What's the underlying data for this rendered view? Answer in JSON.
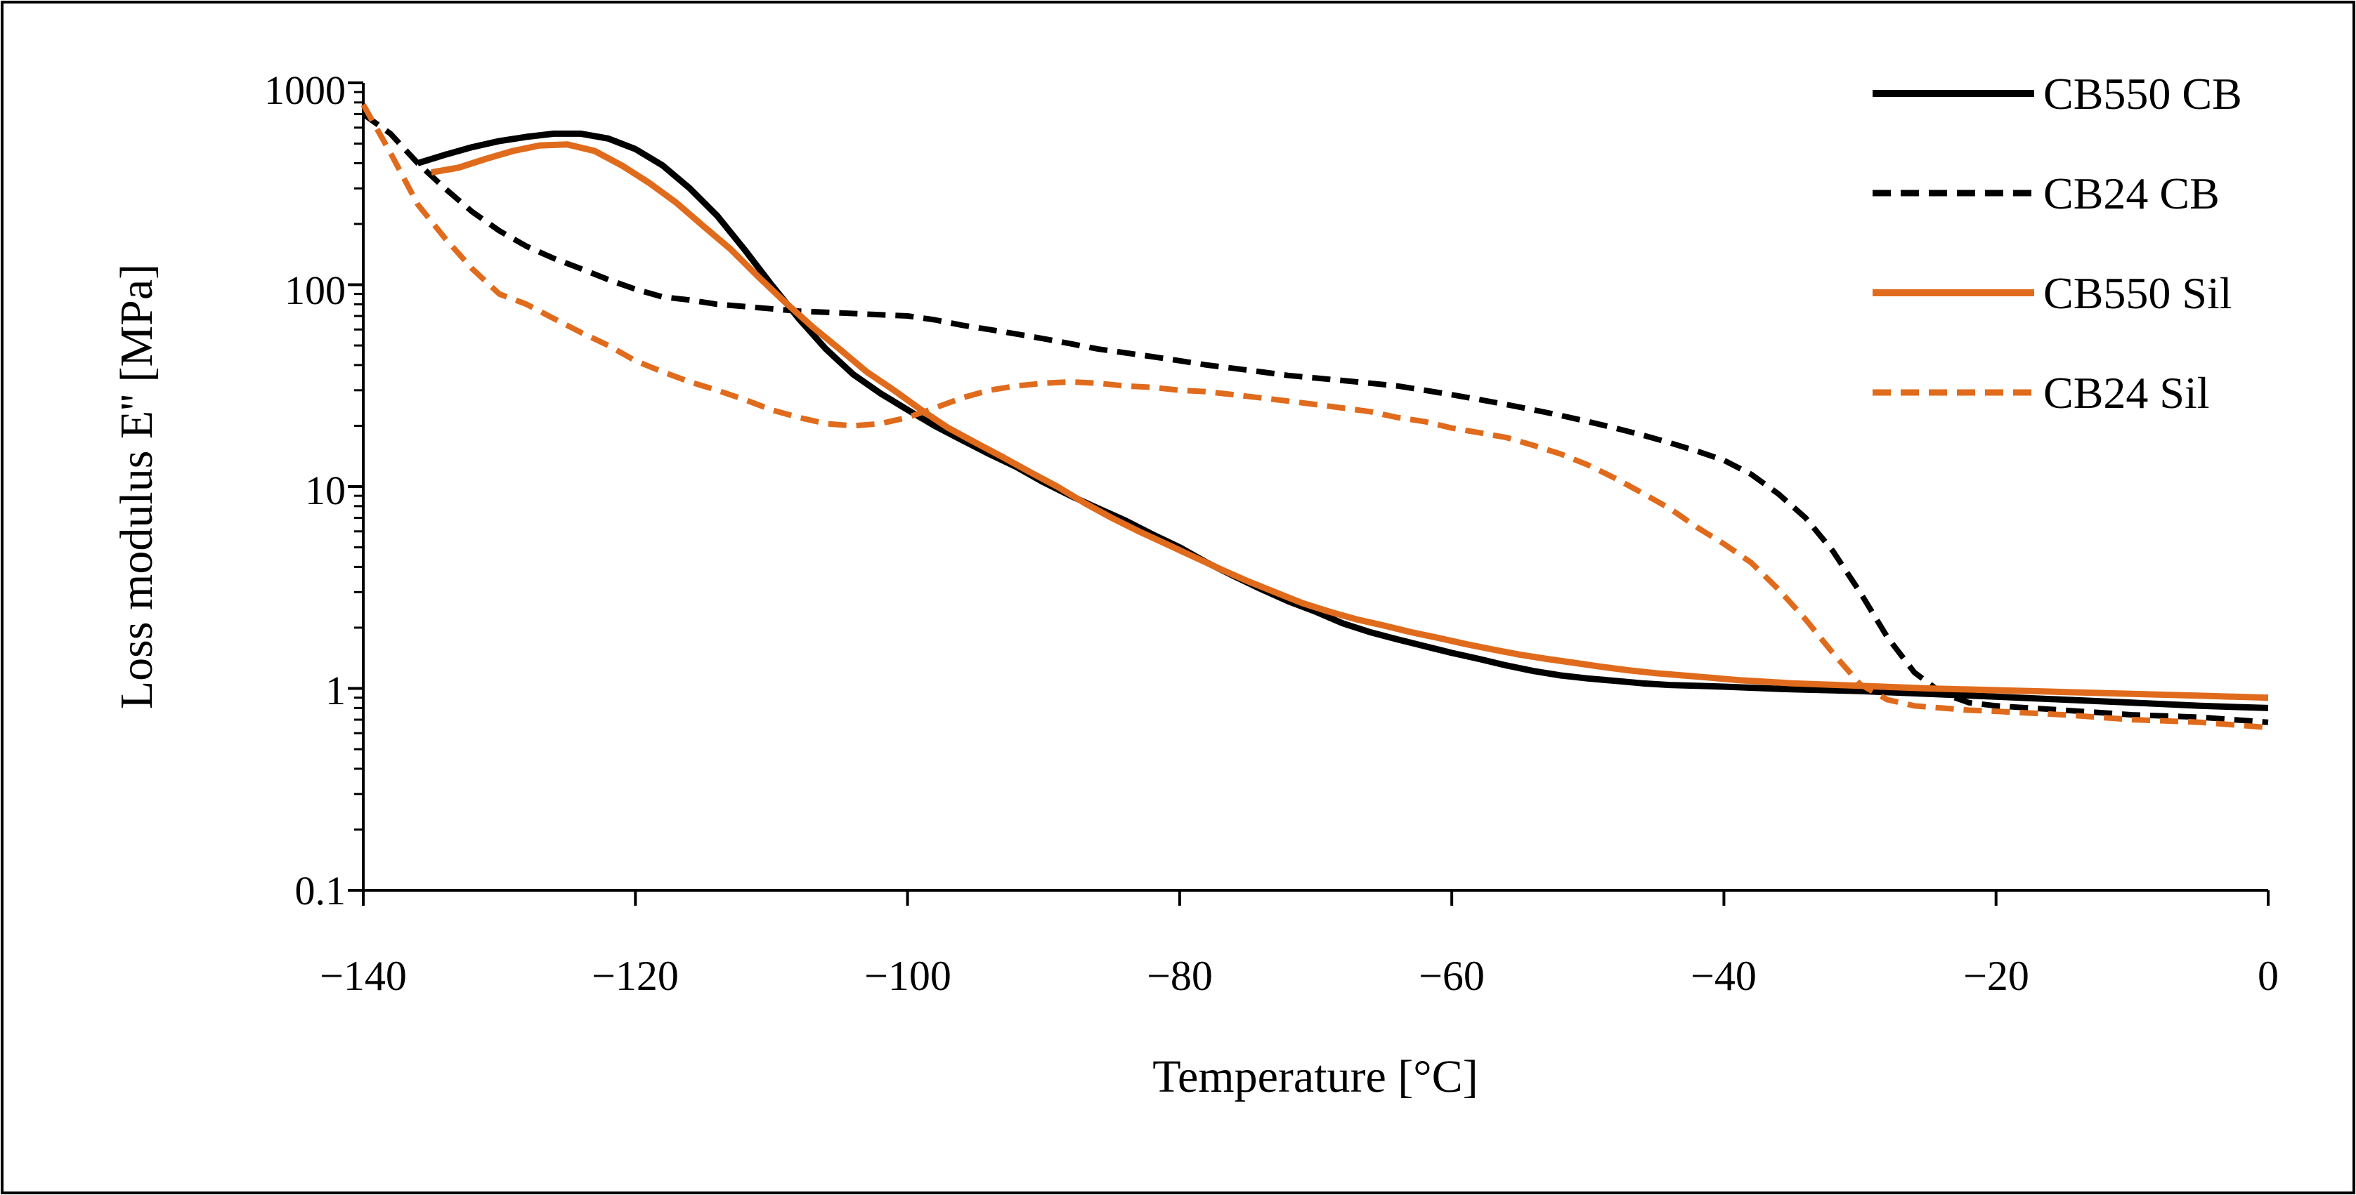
{
  "chart_data": {
    "type": "line",
    "title": "",
    "xlabel": "Temperature [°C]",
    "ylabel": "Loss modulus E'' [MPa]",
    "xlim": [
      -140,
      0
    ],
    "ylim": [
      0.1,
      1000
    ],
    "yscale": "log",
    "x_ticks": [
      -140,
      -120,
      -100,
      -80,
      -60,
      -40,
      -20,
      0
    ],
    "x_tick_labels": [
      "−140",
      "−120",
      "−100",
      "−80",
      "−60",
      "−40",
      "−20",
      "0"
    ],
    "y_ticks": [
      0.1,
      1,
      10,
      100,
      1000
    ],
    "y_tick_labels": [
      "0.1",
      "1",
      "10",
      "100",
      "1000"
    ],
    "grid": false,
    "legend_position": "top-right",
    "series": [
      {
        "name": "CB550 CB",
        "color": "#000000",
        "dash": "solid",
        "points": [
          [
            -136,
            400
          ],
          [
            -134,
            440
          ],
          [
            -132,
            480
          ],
          [
            -130,
            515
          ],
          [
            -128,
            540
          ],
          [
            -126,
            560
          ],
          [
            -124,
            560
          ],
          [
            -122,
            530
          ],
          [
            -120,
            470
          ],
          [
            -118,
            390
          ],
          [
            -116,
            300
          ],
          [
            -114,
            220
          ],
          [
            -112,
            150
          ],
          [
            -110,
            100
          ],
          [
            -108,
            68
          ],
          [
            -106,
            48
          ],
          [
            -104,
            36
          ],
          [
            -102,
            29
          ],
          [
            -100,
            24
          ],
          [
            -98,
            20
          ],
          [
            -96,
            17
          ],
          [
            -94,
            14.5
          ],
          [
            -92,
            12.5
          ],
          [
            -90,
            10.5
          ],
          [
            -88,
            9
          ],
          [
            -86,
            7.8
          ],
          [
            -84,
            6.8
          ],
          [
            -82,
            5.8
          ],
          [
            -80,
            5
          ],
          [
            -78,
            4.2
          ],
          [
            -76,
            3.6
          ],
          [
            -74,
            3.1
          ],
          [
            -72,
            2.7
          ],
          [
            -70,
            2.4
          ],
          [
            -68,
            2.1
          ],
          [
            -66,
            1.9
          ],
          [
            -64,
            1.75
          ],
          [
            -62,
            1.62
          ],
          [
            -60,
            1.5
          ],
          [
            -58,
            1.4
          ],
          [
            -56,
            1.3
          ],
          [
            -54,
            1.22
          ],
          [
            -52,
            1.16
          ],
          [
            -50,
            1.12
          ],
          [
            -48,
            1.09
          ],
          [
            -46,
            1.06
          ],
          [
            -44,
            1.04
          ],
          [
            -42,
            1.03
          ],
          [
            -40,
            1.02
          ],
          [
            -35,
            0.99
          ],
          [
            -30,
            0.97
          ],
          [
            -25,
            0.94
          ],
          [
            -20,
            0.91
          ],
          [
            -15,
            0.88
          ],
          [
            -10,
            0.85
          ],
          [
            -5,
            0.82
          ],
          [
            0,
            0.8
          ]
        ]
      },
      {
        "name": "CB24 CB",
        "color": "#000000",
        "dash": "dashed",
        "points": [
          [
            -140,
            700
          ],
          [
            -138,
            560
          ],
          [
            -136,
            400
          ],
          [
            -134,
            300
          ],
          [
            -132,
            230
          ],
          [
            -130,
            185
          ],
          [
            -128,
            155
          ],
          [
            -126,
            135
          ],
          [
            -124,
            120
          ],
          [
            -122,
            106
          ],
          [
            -120,
            95
          ],
          [
            -118,
            87
          ],
          [
            -116,
            84
          ],
          [
            -114,
            80
          ],
          [
            -112,
            78
          ],
          [
            -110,
            76
          ],
          [
            -108,
            74
          ],
          [
            -106,
            73
          ],
          [
            -104,
            72
          ],
          [
            -102,
            71
          ],
          [
            -100,
            70
          ],
          [
            -98,
            67
          ],
          [
            -96,
            63
          ],
          [
            -94,
            60
          ],
          [
            -92,
            57
          ],
          [
            -90,
            54
          ],
          [
            -88,
            51
          ],
          [
            -86,
            48
          ],
          [
            -84,
            46
          ],
          [
            -82,
            44
          ],
          [
            -80,
            42
          ],
          [
            -78,
            40
          ],
          [
            -76,
            38.5
          ],
          [
            -74,
            37
          ],
          [
            -72,
            35.5
          ],
          [
            -70,
            34.5
          ],
          [
            -68,
            33.5
          ],
          [
            -66,
            32.5
          ],
          [
            -64,
            31.5
          ],
          [
            -62,
            30
          ],
          [
            -60,
            28.5
          ],
          [
            -58,
            27
          ],
          [
            -56,
            25.5
          ],
          [
            -54,
            24
          ],
          [
            -52,
            22.5
          ],
          [
            -50,
            21
          ],
          [
            -48,
            19.5
          ],
          [
            -46,
            18
          ],
          [
            -44,
            16.5
          ],
          [
            -42,
            15
          ],
          [
            -40,
            13.5
          ],
          [
            -38,
            11.5
          ],
          [
            -36,
            9.2
          ],
          [
            -34,
            7
          ],
          [
            -32,
            4.8
          ],
          [
            -30,
            3
          ],
          [
            -28,
            1.8
          ],
          [
            -26,
            1.2
          ],
          [
            -24,
            0.95
          ],
          [
            -22,
            0.85
          ],
          [
            -20,
            0.82
          ],
          [
            -15,
            0.78
          ],
          [
            -10,
            0.74
          ],
          [
            -5,
            0.72
          ],
          [
            0,
            0.68
          ]
        ]
      },
      {
        "name": "CB550 Sil",
        "color": "#E06B1C",
        "dash": "solid",
        "points": [
          [
            -135,
            360
          ],
          [
            -133,
            380
          ],
          [
            -131,
            420
          ],
          [
            -129,
            460
          ],
          [
            -127,
            490
          ],
          [
            -125,
            495
          ],
          [
            -123,
            460
          ],
          [
            -121,
            390
          ],
          [
            -119,
            320
          ],
          [
            -117,
            255
          ],
          [
            -115,
            195
          ],
          [
            -113,
            150
          ],
          [
            -111,
            110
          ],
          [
            -109,
            82
          ],
          [
            -107,
            62
          ],
          [
            -105,
            48
          ],
          [
            -103,
            37
          ],
          [
            -101,
            30
          ],
          [
            -99,
            24
          ],
          [
            -97,
            19.5
          ],
          [
            -95,
            16.5
          ],
          [
            -93,
            14
          ],
          [
            -91,
            11.8
          ],
          [
            -89,
            10
          ],
          [
            -87,
            8.3
          ],
          [
            -85,
            7
          ],
          [
            -83,
            6
          ],
          [
            -81,
            5.2
          ],
          [
            -79,
            4.5
          ],
          [
            -77,
            3.9
          ],
          [
            -75,
            3.4
          ],
          [
            -73,
            3
          ],
          [
            -71,
            2.65
          ],
          [
            -69,
            2.4
          ],
          [
            -67,
            2.2
          ],
          [
            -65,
            2.05
          ],
          [
            -63,
            1.9
          ],
          [
            -61,
            1.78
          ],
          [
            -59,
            1.66
          ],
          [
            -57,
            1.56
          ],
          [
            -55,
            1.47
          ],
          [
            -53,
            1.4
          ],
          [
            -51,
            1.34
          ],
          [
            -49,
            1.28
          ],
          [
            -47,
            1.23
          ],
          [
            -45,
            1.19
          ],
          [
            -43,
            1.16
          ],
          [
            -41,
            1.13
          ],
          [
            -39,
            1.1
          ],
          [
            -35,
            1.06
          ],
          [
            -30,
            1.03
          ],
          [
            -25,
            1
          ],
          [
            -20,
            0.98
          ],
          [
            -15,
            0.96
          ],
          [
            -10,
            0.94
          ],
          [
            -5,
            0.92
          ],
          [
            0,
            0.9
          ]
        ]
      },
      {
        "name": "CB24 Sil",
        "color": "#E06B1C",
        "dash": "dashed",
        "points": [
          [
            -140,
            780
          ],
          [
            -138,
            450
          ],
          [
            -136,
            250
          ],
          [
            -134,
            170
          ],
          [
            -132,
            120
          ],
          [
            -130,
            90
          ],
          [
            -128,
            80
          ],
          [
            -126,
            68
          ],
          [
            -124,
            58
          ],
          [
            -122,
            50
          ],
          [
            -120,
            42
          ],
          [
            -118,
            37
          ],
          [
            -116,
            33
          ],
          [
            -114,
            30
          ],
          [
            -112,
            27
          ],
          [
            -110,
            24
          ],
          [
            -108,
            22
          ],
          [
            -106,
            20.5
          ],
          [
            -104,
            20
          ],
          [
            -102,
            20.5
          ],
          [
            -100,
            22
          ],
          [
            -98,
            24.5
          ],
          [
            -96,
            27.5
          ],
          [
            -94,
            30
          ],
          [
            -92,
            31.5
          ],
          [
            -90,
            32.5
          ],
          [
            -88,
            33
          ],
          [
            -86,
            32.5
          ],
          [
            -84,
            31.5
          ],
          [
            -82,
            31
          ],
          [
            -80,
            30
          ],
          [
            -78,
            29.5
          ],
          [
            -76,
            28.5
          ],
          [
            -74,
            27.5
          ],
          [
            -72,
            26.5
          ],
          [
            -70,
            25.5
          ],
          [
            -68,
            24.5
          ],
          [
            -66,
            23.5
          ],
          [
            -64,
            22
          ],
          [
            -62,
            21
          ],
          [
            -60,
            19.5
          ],
          [
            -58,
            18.5
          ],
          [
            -56,
            17.5
          ],
          [
            -54,
            16
          ],
          [
            -52,
            14.5
          ],
          [
            -50,
            12.8
          ],
          [
            -48,
            11
          ],
          [
            -46,
            9.3
          ],
          [
            -44,
            7.8
          ],
          [
            -42,
            6.3
          ],
          [
            -40,
            5.2
          ],
          [
            -38,
            4.2
          ],
          [
            -36,
            3.1
          ],
          [
            -34,
            2.2
          ],
          [
            -32,
            1.5
          ],
          [
            -30,
            1.05
          ],
          [
            -28,
            0.88
          ],
          [
            -26,
            0.82
          ],
          [
            -24,
            0.8
          ],
          [
            -22,
            0.78
          ],
          [
            -20,
            0.77
          ],
          [
            -15,
            0.74
          ],
          [
            -10,
            0.7
          ],
          [
            -5,
            0.68
          ],
          [
            0,
            0.64
          ]
        ]
      }
    ]
  }
}
